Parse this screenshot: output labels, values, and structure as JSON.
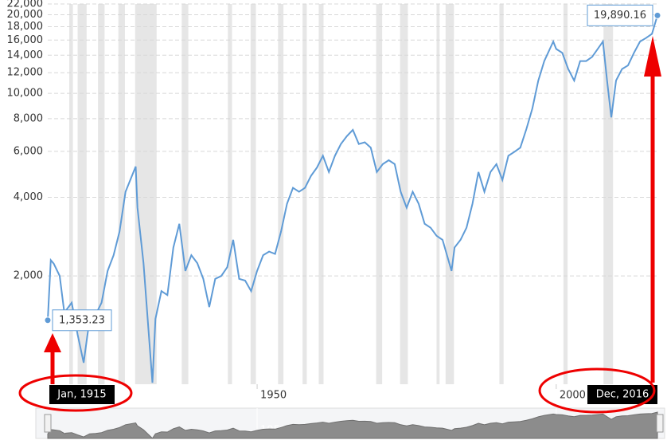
{
  "chart_data": {
    "type": "line",
    "log_y": true,
    "grid": true,
    "start_label": "Jan, 1915",
    "end_label": "Dec, 2016",
    "xlim": [
      1915,
      2016.92
    ],
    "xticks": [
      1950,
      2000
    ],
    "ylim": [
      770,
      22000
    ],
    "yticks": [
      {
        "value": 2000,
        "label": "2,000"
      },
      {
        "value": 4000,
        "label": "4,000"
      },
      {
        "value": 6000,
        "label": "6,000"
      },
      {
        "value": 8000,
        "label": "8,000"
      },
      {
        "value": 10000,
        "label": "10,000"
      },
      {
        "value": 12000,
        "label": "12,000"
      },
      {
        "value": 14000,
        "label": "14,000"
      },
      {
        "value": 16000,
        "label": "16,000"
      },
      {
        "value": 18000,
        "label": "18,000"
      },
      {
        "value": 20000,
        "label": "20,000"
      },
      {
        "value": 22000,
        "label": "22,000"
      }
    ],
    "recessions": [
      [
        1918.6,
        1919.2
      ],
      [
        1920.0,
        1921.5
      ],
      [
        1923.4,
        1924.5
      ],
      [
        1926.8,
        1927.9
      ],
      [
        1929.6,
        1933.2
      ],
      [
        1937.4,
        1938.5
      ],
      [
        1945.1,
        1945.8
      ],
      [
        1948.9,
        1949.8
      ],
      [
        1953.5,
        1954.4
      ],
      [
        1957.6,
        1958.3
      ],
      [
        1960.3,
        1961.1
      ],
      [
        1969.9,
        1970.9
      ],
      [
        1973.9,
        1975.2
      ],
      [
        1980.0,
        1980.5
      ],
      [
        1981.5,
        1982.9
      ],
      [
        1990.5,
        1991.2
      ],
      [
        2001.2,
        2001.9
      ],
      [
        2007.9,
        2009.5
      ]
    ],
    "recession_color": "#e6e6e6",
    "series": [
      {
        "color": "#5f9bd6",
        "x": [
          1915,
          1915.5,
          1916,
          1917,
          1917.9,
          1918,
          1919,
          1920,
          1921,
          1922,
          1923,
          1924,
          1925,
          1926,
          1927,
          1928,
          1929.7,
          1930,
          1931,
          1932.5,
          1933,
          1934,
          1935,
          1936,
          1937,
          1938,
          1939,
          1940,
          1941,
          1942,
          1943,
          1944,
          1945,
          1946,
          1947,
          1948,
          1949,
          1950,
          1951,
          1952,
          1953,
          1954,
          1955,
          1956,
          1957,
          1958,
          1959,
          1960,
          1961,
          1962,
          1963,
          1964,
          1965,
          1966,
          1967,
          1968,
          1969,
          1970,
          1971,
          1972,
          1973,
          1974,
          1975,
          1976,
          1977,
          1978,
          1979,
          1980,
          1981,
          1982.5,
          1983,
          1984,
          1985,
          1986,
          1987,
          1988,
          1989,
          1990,
          1991,
          1992,
          1993,
          1994,
          1995,
          1996,
          1997,
          1998,
          1999.5,
          2000,
          2001,
          2002,
          2003,
          2004,
          2005,
          2006,
          2007.8,
          2008.5,
          2009.2,
          2010,
          2011,
          2012,
          2013,
          2014,
          2015,
          2016,
          2016.92
        ],
        "values": [
          1353.23,
          2300,
          2230,
          2000,
          1370,
          1470,
          1580,
          1190,
          930,
          1370,
          1420,
          1580,
          2090,
          2400,
          2960,
          4200,
          5250,
          3650,
          2240,
          780,
          1370,
          1750,
          1690,
          2570,
          3170,
          2090,
          2400,
          2240,
          1950,
          1520,
          1950,
          2000,
          2160,
          2750,
          1950,
          1920,
          1750,
          2090,
          2400,
          2480,
          2430,
          2960,
          3780,
          4350,
          4200,
          4350,
          4830,
          5200,
          5770,
          5000,
          5770,
          6400,
          6860,
          7250,
          6400,
          6500,
          6200,
          5000,
          5360,
          5550,
          5360,
          4200,
          3650,
          4200,
          3780,
          3170,
          3060,
          2850,
          2750,
          2090,
          2570,
          2750,
          3060,
          3780,
          5000,
          4200,
          5000,
          5360,
          4660,
          5770,
          5970,
          6200,
          7300,
          8740,
          11200,
          13300,
          15800,
          14800,
          14300,
          12400,
          11200,
          13300,
          13300,
          13800,
          15800,
          11200,
          8100,
          11200,
          12400,
          12800,
          14300,
          15800,
          16300,
          16900,
          19890.16
        ],
        "value_labels": [
          "1,353.23",
          null,
          null,
          null,
          null,
          null,
          null,
          null,
          null,
          null,
          null,
          null,
          null,
          null,
          null,
          null,
          null,
          null,
          null,
          null,
          null,
          null,
          null,
          null,
          null,
          null,
          null,
          null,
          null,
          null,
          null,
          null,
          null,
          null,
          null,
          null,
          null,
          null,
          null,
          null,
          null,
          null,
          null,
          null,
          null,
          null,
          null,
          null,
          null,
          null,
          null,
          null,
          null,
          null,
          null,
          null,
          null,
          null,
          null,
          null,
          null,
          null,
          null,
          null,
          null,
          null,
          null,
          null,
          null,
          null,
          null,
          null,
          null,
          null,
          null,
          null,
          null,
          null,
          null,
          null,
          null,
          null,
          null,
          null,
          null,
          null,
          null,
          null,
          null,
          null,
          null,
          null,
          null,
          null,
          null,
          null,
          null,
          null,
          null,
          null,
          null,
          null,
          null,
          null,
          "19,890.16"
        ]
      }
    ]
  }
}
